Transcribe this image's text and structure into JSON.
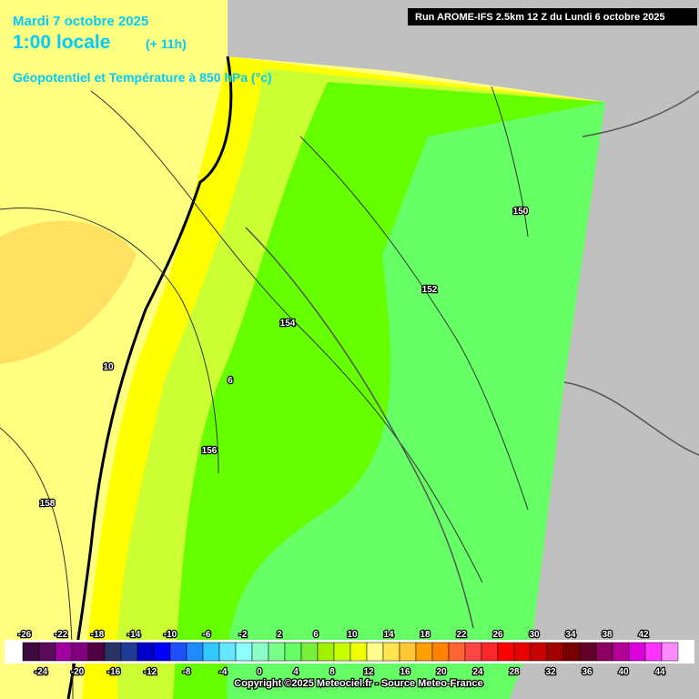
{
  "header": {
    "date": "Mardi 7 octobre 2025",
    "time": "1:00 locale",
    "offset": "(+ 11h)",
    "parameter": "Géopotentiel et Température à 850 hPa (°c)",
    "run": "Run AROME-IFS 2.5km 12 Z du Lundi 6 octobre 2025"
  },
  "isolines": [
    {
      "label": "10"
    },
    {
      "label": "6"
    },
    {
      "label": "156"
    },
    {
      "label": "158"
    },
    {
      "label": "154"
    },
    {
      "label": "152"
    },
    {
      "label": "150"
    }
  ],
  "legend": {
    "top_labels": [
      "-26",
      "-22",
      "-18",
      "-14",
      "-10",
      "-6",
      "-2",
      "2",
      "6",
      "10",
      "14",
      "18",
      "22",
      "26",
      "30",
      "34",
      "38",
      "42"
    ],
    "bottom_labels": [
      "-24",
      "-20",
      "-16",
      "-12",
      "-8",
      "-4",
      "0",
      "4",
      "8",
      "12",
      "16",
      "20",
      "24",
      "28",
      "32",
      "36",
      "40",
      "44"
    ],
    "colors": [
      "#3c0a3c",
      "#5a0a5a",
      "#a000a0",
      "#800080",
      "#500040",
      "#283264",
      "#1e3c96",
      "#0000c8",
      "#0000ff",
      "#1e50ff",
      "#1e8cff",
      "#32c8ff",
      "#64e6ff",
      "#8cffff",
      "#8cffc8",
      "#78ff8c",
      "#64ff64",
      "#78f03c",
      "#a0f000",
      "#c8ff00",
      "#f0ff00",
      "#ffff8c",
      "#ffe650",
      "#ffc832",
      "#ffa000",
      "#ff8200",
      "#ff6432",
      "#ff4646",
      "#ff2828",
      "#ff0000",
      "#e60000",
      "#c80000",
      "#a00000",
      "#780000",
      "#640028",
      "#8c0064",
      "#b40096",
      "#dc00dc",
      "#ff32ff",
      "#ff8cff"
    ]
  },
  "footer": {
    "copyright": "Copyright ©2025 Meteociel.fr - Source Meteo-France"
  }
}
